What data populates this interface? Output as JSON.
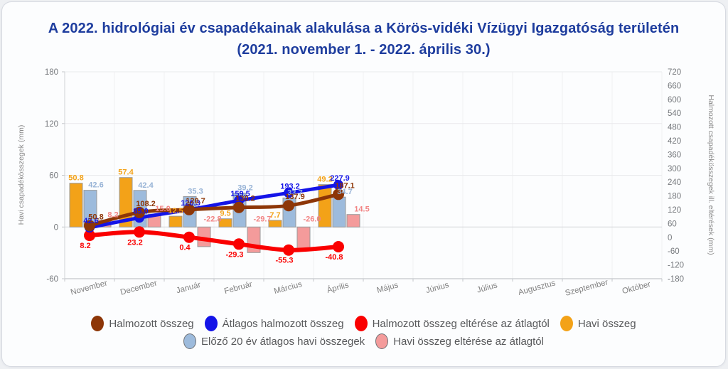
{
  "title": {
    "line1": "A 2022. hidrológiai év csapadékainak alakulása a Körös-vidéki Vízügyi Igazgatóság területén",
    "line2": "(2021. november 1. - 2022. április 30.)"
  },
  "colors": {
    "title": "#1e3d9e",
    "axis_text": "#76797d",
    "axis_line": "#c4c7ca",
    "grid_h": "#e9eaec",
    "grid_zero": "#d4d6d9",
    "grid_v": "#f0f1f3",
    "bar_border": "#999999"
  },
  "chart_data": {
    "type": "combo-bar-line",
    "categories": [
      "November",
      "December",
      "Január",
      "Február",
      "Március",
      "Április",
      "Május",
      "Június",
      "Július",
      "Augusztus",
      "Szeptember",
      "Október"
    ],
    "left_axis": {
      "label": "Havi csapadékösszegek (mm)",
      "min": -60,
      "max": 180,
      "ticks": [
        180,
        120,
        60,
        0,
        -60
      ]
    },
    "right_axis": {
      "label": "Halmozott csapadékösszegek ill. eltérések (mm)",
      "min": -180,
      "max": 720,
      "ticks": [
        720,
        660,
        600,
        540,
        480,
        420,
        360,
        300,
        240,
        180,
        120,
        60,
        0,
        -60,
        -120,
        -180
      ]
    },
    "series": [
      {
        "name": "Havi összeg",
        "role": "monthly",
        "type": "bar",
        "axis": "left",
        "color": "#f3a218",
        "label_color": "#f3a218",
        "values": [
          50.8,
          57.4,
          12.5,
          9.5,
          7.7,
          49.2,
          null,
          null,
          null,
          null,
          null,
          null
        ]
      },
      {
        "name": "Előző 20 év átlagos havi összegek",
        "role": "avg_monthly",
        "type": "bar",
        "axis": "left",
        "color": "#9dbbdc",
        "label_color": "#97b3d6",
        "values": [
          42.6,
          42.4,
          35.3,
          39.2,
          33.7,
          34.7,
          null,
          null,
          null,
          null,
          null,
          null
        ]
      },
      {
        "name": "Havi összeg eltérése az átlagtól",
        "role": "monthly_dev",
        "type": "bar",
        "axis": "left",
        "color": "#f49b9b",
        "label_color": "#f28585",
        "values": [
          8.2,
          15.0,
          -22.8,
          -29.7,
          -26.0,
          14.5,
          null,
          null,
          null,
          null,
          null,
          null
        ]
      },
      {
        "name": "Halmozott összeg eltérése az átlagtól",
        "role": "cumulative_dev",
        "type": "line",
        "axis": "right",
        "color": "#fa0000",
        "label_color": "#fa0000",
        "values": [
          8.2,
          23.2,
          0.4,
          -29.3,
          -55.3,
          -40.8,
          null,
          null,
          null,
          null,
          null,
          null
        ]
      },
      {
        "name": "Átlagos halmozott összeg",
        "role": "avg_cumulative",
        "type": "line",
        "axis": "right",
        "color": "#1414e8",
        "label_color": "#1414e8",
        "values": [
          42.6,
          85.0,
          120.3,
          159.5,
          193.2,
          227.9,
          null,
          null,
          null,
          null,
          null,
          null
        ]
      },
      {
        "name": "Halmozott összeg",
        "role": "cumulative",
        "type": "line",
        "axis": "right",
        "color": "#8d3607",
        "label_color": "#8d3607",
        "values": [
          50.8,
          108.2,
          120.7,
          130.2,
          137.9,
          187.1,
          null,
          null,
          null,
          null,
          null,
          null
        ]
      }
    ]
  },
  "legend": {
    "rows": [
      [
        "Halmozott összeg",
        "Átlagos halmozott összeg",
        "Halmozott összeg eltérése az átlagtól",
        "Havi összeg"
      ],
      [
        "Előző 20 év átlagos havi összegek",
        "Havi összeg eltérése az átlagtól"
      ]
    ],
    "bordered_markers": [
      "Előző 20 év átlagos havi összegek",
      "Havi összeg eltérése az átlagtól"
    ],
    "marker_border_color": "#6f7276"
  }
}
